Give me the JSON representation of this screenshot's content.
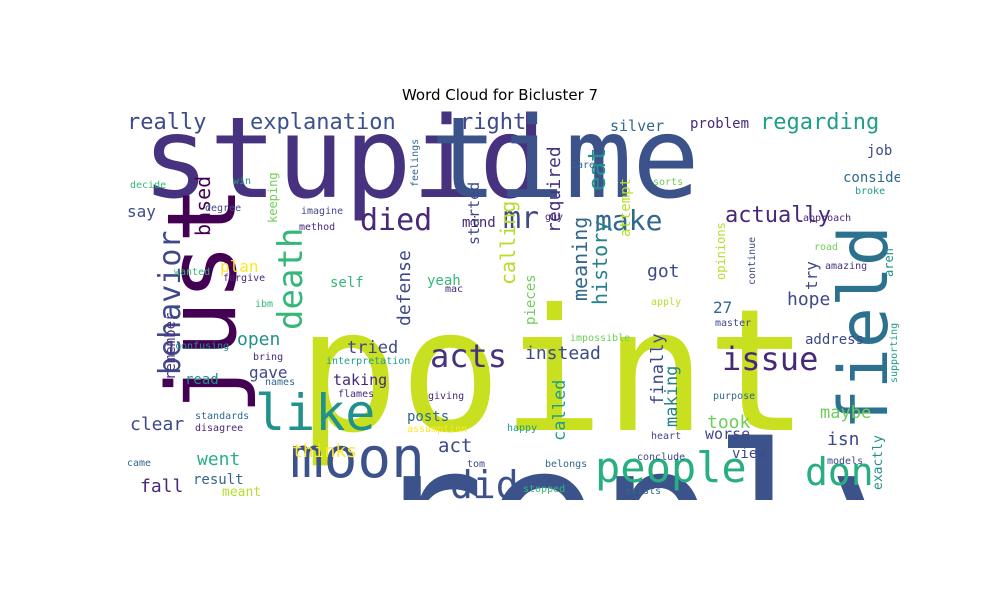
{
  "title": "Word Cloud for Bicluster 7",
  "colors": {
    "background": "#ffffff",
    "palette": [
      "#440154",
      "#46327e",
      "#365c8d",
      "#277f8e",
      "#1fa187",
      "#4ac16d",
      "#a0da39",
      "#fde725"
    ]
  },
  "words": [
    {
      "text": "point",
      "color": "#c8e020"
    },
    {
      "text": "reply",
      "color": "#3b528b"
    },
    {
      "text": "stupid",
      "color": "#46327e"
    },
    {
      "text": "time",
      "color": "#3b528b"
    },
    {
      "text": "just",
      "color": "#440154"
    },
    {
      "text": "field",
      "color": "#2c728e"
    },
    {
      "text": "moon",
      "color": "#3b528b"
    },
    {
      "text": "like",
      "color": "#21918c"
    },
    {
      "text": "people",
      "color": "#28ae80"
    },
    {
      "text": "don",
      "color": "#28ae80"
    },
    {
      "text": "did",
      "color": "#3b528b"
    },
    {
      "text": "issue",
      "color": "#482878"
    },
    {
      "text": "acts",
      "color": "#46327e"
    },
    {
      "text": "behavior",
      "color": "#3e4989"
    },
    {
      "text": "death",
      "color": "#35b779"
    },
    {
      "text": "died",
      "color": "#482878"
    },
    {
      "text": "mr",
      "color": "#3e4989"
    },
    {
      "text": "make",
      "color": "#31688e"
    },
    {
      "text": "explanation",
      "color": "#3b528b"
    },
    {
      "text": "really",
      "color": "#3e4989"
    },
    {
      "text": "right",
      "color": "#3e4989"
    },
    {
      "text": "regarding",
      "color": "#1f9e89"
    },
    {
      "text": "actually",
      "color": "#482878"
    },
    {
      "text": "eat",
      "color": "#21918c"
    },
    {
      "text": "required",
      "color": "#46327e"
    },
    {
      "text": "started",
      "color": "#3e4989"
    },
    {
      "text": "silver",
      "color": "#31688e"
    },
    {
      "text": "problem",
      "color": "#482878"
    },
    {
      "text": "attempt",
      "color": "#b5de2b"
    },
    {
      "text": "job",
      "color": "#3e4989"
    },
    {
      "text": "consider",
      "color": "#31688e"
    },
    {
      "text": "broke",
      "color": "#1f9e89"
    },
    {
      "text": "say",
      "color": "#3e4989"
    },
    {
      "text": "based",
      "color": "#440154"
    },
    {
      "text": "keeping",
      "color": "#6ece58"
    },
    {
      "text": "plan",
      "color": "#fde725"
    },
    {
      "text": "defense",
      "color": "#3e4989"
    },
    {
      "text": "calling",
      "color": "#b5de2b"
    },
    {
      "text": "meaning",
      "color": "#31688e"
    },
    {
      "text": "history",
      "color": "#26828e"
    },
    {
      "text": "mind",
      "color": "#482878"
    },
    {
      "text": "tried",
      "color": "#3e4989"
    },
    {
      "text": "got",
      "color": "#3e4989"
    },
    {
      "text": "hope",
      "color": "#3e4989"
    },
    {
      "text": "try",
      "color": "#3e4989"
    },
    {
      "text": "27",
      "color": "#31688e"
    },
    {
      "text": "instead",
      "color": "#3e4989"
    },
    {
      "text": "finally",
      "color": "#3e4989"
    },
    {
      "text": "making",
      "color": "#26828e"
    },
    {
      "text": "called",
      "color": "#1f9e89"
    },
    {
      "text": "pieces",
      "color": "#6ece58"
    },
    {
      "text": "self",
      "color": "#35b779"
    },
    {
      "text": "yeah",
      "color": "#35b779"
    },
    {
      "text": "mac",
      "color": "#482878"
    },
    {
      "text": "remember",
      "color": "#46327e"
    },
    {
      "text": "open",
      "color": "#21918c"
    },
    {
      "text": "gave",
      "color": "#3e4989"
    },
    {
      "text": "clear",
      "color": "#3e4989"
    },
    {
      "text": "read",
      "color": "#21918c"
    },
    {
      "text": "taking",
      "color": "#482878"
    },
    {
      "text": "flames",
      "color": "#482878"
    },
    {
      "text": "posts",
      "color": "#31688e"
    },
    {
      "text": "thinks",
      "color": "#fde725"
    },
    {
      "text": "act",
      "color": "#3e4989"
    },
    {
      "text": "went",
      "color": "#2ab07f"
    },
    {
      "text": "fall",
      "color": "#482878"
    },
    {
      "text": "result",
      "color": "#31688e"
    },
    {
      "text": "meant",
      "color": "#b5de2b"
    },
    {
      "text": "maybe",
      "color": "#6ece58"
    },
    {
      "text": "took",
      "color": "#6ece58"
    },
    {
      "text": "isn",
      "color": "#3e4989"
    },
    {
      "text": "worse",
      "color": "#3e4989"
    },
    {
      "text": "view",
      "color": "#3e4989"
    },
    {
      "text": "address",
      "color": "#3e4989"
    },
    {
      "text": "exactly",
      "color": "#21918c"
    },
    {
      "text": "supporting",
      "color": "#1f9e89"
    },
    {
      "text": "aren",
      "color": "#21918c"
    },
    {
      "text": "amazing",
      "color": "#46327e"
    },
    {
      "text": "road",
      "color": "#6ece58"
    },
    {
      "text": "continue",
      "color": "#3e4989"
    },
    {
      "text": "master",
      "color": "#3e4989"
    },
    {
      "text": "approach",
      "color": "#482878"
    },
    {
      "text": "opinions",
      "color": "#b5de2b"
    },
    {
      "text": "apply",
      "color": "#b5de2b"
    },
    {
      "text": "impossible",
      "color": "#6ece58"
    },
    {
      "text": "interpretation",
      "color": "#1f9e89"
    },
    {
      "text": "confusing",
      "color": "#21918c"
    },
    {
      "text": "bring",
      "color": "#482878"
    },
    {
      "text": "names",
      "color": "#31688e"
    },
    {
      "text": "standards",
      "color": "#31688e"
    },
    {
      "text": "disagree",
      "color": "#482878"
    },
    {
      "text": "assumption",
      "color": "#fde725"
    },
    {
      "text": "giving",
      "color": "#482878"
    },
    {
      "text": "happy",
      "color": "#1f9e89"
    },
    {
      "text": "heart",
      "color": "#3e4989"
    },
    {
      "text": "purpose",
      "color": "#31688e"
    },
    {
      "text": "conclude",
      "color": "#3e4989"
    },
    {
      "text": "models",
      "color": "#3e4989"
    },
    {
      "text": "exists",
      "color": "#31688e"
    },
    {
      "text": "stopped",
      "color": "#35b779"
    },
    {
      "text": "belongs",
      "color": "#31688e"
    },
    {
      "text": "tom",
      "color": "#3e4989"
    },
    {
      "text": "came",
      "color": "#31688e"
    },
    {
      "text": "decide",
      "color": "#35b779"
    },
    {
      "text": "win",
      "color": "#1f9e89"
    },
    {
      "text": "degree",
      "color": "#3e4989"
    },
    {
      "text": "imagine",
      "color": "#3e4989"
    },
    {
      "text": "method",
      "color": "#482878"
    },
    {
      "text": "feelings",
      "color": "#31688e"
    },
    {
      "text": "guy",
      "color": "#482878"
    },
    {
      "text": "care",
      "color": "#31688e"
    },
    {
      "text": "sorts",
      "color": "#6ece58"
    },
    {
      "text": "wanted",
      "color": "#35b779"
    },
    {
      "text": "forgive",
      "color": "#482878"
    },
    {
      "text": "ibm",
      "color": "#35b779"
    }
  ]
}
